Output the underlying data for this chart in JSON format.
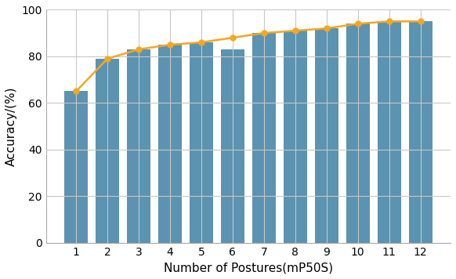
{
  "categories": [
    1,
    2,
    3,
    4,
    5,
    6,
    7,
    8,
    9,
    10,
    11,
    12
  ],
  "bar_values": [
    65,
    79,
    83,
    85,
    86,
    83,
    90,
    91,
    92,
    94,
    95,
    95
  ],
  "line_values": [
    65,
    79,
    83,
    85,
    86,
    88,
    90,
    91,
    92,
    94,
    95,
    95
  ],
  "bar_color": "#5b93b0",
  "line_color": "#f5a623",
  "xlabel": "Number of Postures(mP50S)",
  "ylabel": "Accuracy/(%)",
  "ylim": [
    0,
    100
  ],
  "yticks": [
    0,
    20,
    40,
    60,
    80,
    100
  ],
  "grid_color": "#c8c8c8",
  "background_color": "#ffffff",
  "xlabel_fontsize": 11,
  "ylabel_fontsize": 11,
  "tick_fontsize": 10,
  "bar_width": 0.75,
  "line_width": 1.8,
  "marker_size": 5
}
